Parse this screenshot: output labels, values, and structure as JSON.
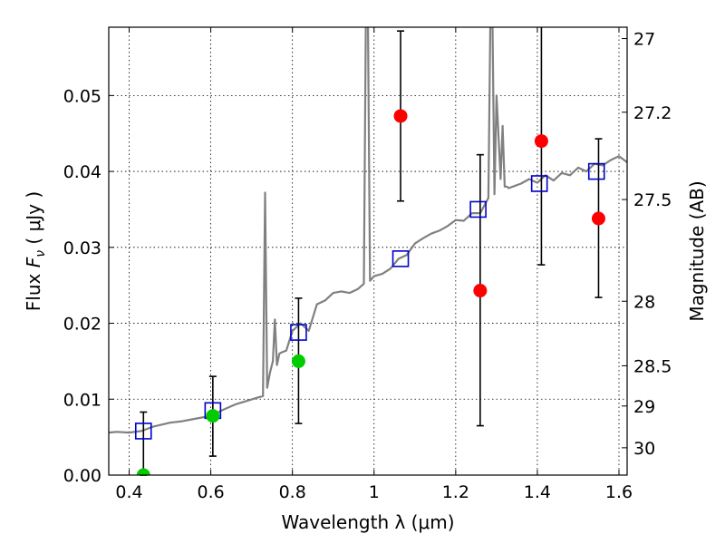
{
  "chart_data": {
    "type": "scatter",
    "title": "",
    "xlabel": "Wavelength  λ (μm)",
    "ylabel_prefix": "Flux ",
    "ylabel_symbol": "F",
    "ylabel_subscript": "ν",
    "ylabel_suffix": " ( μJy )",
    "y2label": "Magnitude (AB)",
    "xlim": [
      0.35,
      1.62
    ],
    "ylim": [
      0.0,
      0.059
    ],
    "grid": true,
    "xticks": [
      0.4,
      0.6,
      0.8,
      1.0,
      1.2,
      1.4,
      1.6
    ],
    "xtick_labels": [
      "0.4",
      "0.6",
      "0.8",
      "1",
      "1.2",
      "1.4",
      "1.6"
    ],
    "yticks": [
      0.0,
      0.01,
      0.02,
      0.03,
      0.04,
      0.05
    ],
    "ytick_labels": [
      "0.00",
      "0.01",
      "0.02",
      "0.03",
      "0.04",
      "0.05"
    ],
    "y2ticks": [
      {
        "label": "27",
        "flux": 0.0575
      },
      {
        "label": "27.2",
        "flux": 0.0478
      },
      {
        "label": "27.5",
        "flux": 0.0363
      },
      {
        "label": "28",
        "flux": 0.0229
      },
      {
        "label": "28.5",
        "flux": 0.0144
      },
      {
        "label": "29",
        "flux": 0.0091
      },
      {
        "label": "30",
        "flux": 0.0036
      }
    ],
    "colors": {
      "spectrum": "#808080",
      "model_box": "#0000cc",
      "red_points": "#ff0000",
      "green_points": "#00cc00",
      "errorbar": "#000000"
    },
    "spectrum": {
      "x": [
        0.35,
        0.37,
        0.4,
        0.43,
        0.46,
        0.5,
        0.53,
        0.56,
        0.6,
        0.63,
        0.66,
        0.69,
        0.72,
        0.728,
        0.733,
        0.738,
        0.745,
        0.752,
        0.757,
        0.762,
        0.768,
        0.775,
        0.785,
        0.8,
        0.82,
        0.84,
        0.86,
        0.88,
        0.9,
        0.92,
        0.94,
        0.96,
        0.975,
        0.98,
        0.985,
        0.99,
        1.0,
        1.02,
        1.04,
        1.06,
        1.08,
        1.1,
        1.12,
        1.14,
        1.16,
        1.18,
        1.2,
        1.22,
        1.24,
        1.26,
        1.28,
        1.285,
        1.29,
        1.295,
        1.3,
        1.31,
        1.315,
        1.32,
        1.325,
        1.33,
        1.34,
        1.36,
        1.38,
        1.4,
        1.42,
        1.44,
        1.46,
        1.48,
        1.5,
        1.52,
        1.54,
        1.56,
        1.58,
        1.6,
        1.62
      ],
      "y": [
        0.0056,
        0.0057,
        0.0056,
        0.0058,
        0.0064,
        0.0069,
        0.0071,
        0.0074,
        0.0078,
        0.0086,
        0.0093,
        0.0098,
        0.0103,
        0.0104,
        0.0372,
        0.0115,
        0.0135,
        0.015,
        0.0205,
        0.0145,
        0.016,
        0.0162,
        0.0164,
        0.019,
        0.02,
        0.019,
        0.0225,
        0.023,
        0.024,
        0.0242,
        0.024,
        0.0245,
        0.0252,
        0.06,
        0.06,
        0.0256,
        0.0262,
        0.0265,
        0.0272,
        0.0285,
        0.029,
        0.0305,
        0.0312,
        0.0318,
        0.0322,
        0.0328,
        0.0336,
        0.0335,
        0.0345,
        0.0345,
        0.0365,
        0.06,
        0.06,
        0.037,
        0.05,
        0.039,
        0.046,
        0.038,
        0.038,
        0.0378,
        0.038,
        0.0384,
        0.039,
        0.0385,
        0.0395,
        0.0388,
        0.0398,
        0.0395,
        0.0405,
        0.04,
        0.041,
        0.0408,
        0.0415,
        0.042,
        0.0412
      ]
    },
    "model_boxes": [
      {
        "x": 0.435,
        "y": 0.0058
      },
      {
        "x": 0.605,
        "y": 0.0085
      },
      {
        "x": 0.815,
        "y": 0.0188
      },
      {
        "x": 1.065,
        "y": 0.0285
      },
      {
        "x": 1.255,
        "y": 0.035
      },
      {
        "x": 1.405,
        "y": 0.0384
      },
      {
        "x": 1.545,
        "y": 0.04
      }
    ],
    "red_points": [
      {
        "x": 1.065,
        "y": 0.0473,
        "lo": 0.0361,
        "hi": 0.0585
      },
      {
        "x": 1.26,
        "y": 0.0243,
        "lo": 0.0065,
        "hi": 0.0422
      },
      {
        "x": 1.41,
        "y": 0.044,
        "lo": 0.0277,
        "hi": 0.06
      },
      {
        "x": 1.55,
        "y": 0.0338,
        "lo": 0.0234,
        "hi": 0.0443
      }
    ],
    "green_points": [
      {
        "x": 0.435,
        "y": 0.0,
        "lo": 0.0,
        "hi": 0.0083
      },
      {
        "x": 0.605,
        "y": 0.0078,
        "lo": 0.0025,
        "hi": 0.013
      },
      {
        "x": 0.815,
        "y": 0.015,
        "lo": 0.0068,
        "hi": 0.0233
      }
    ]
  }
}
